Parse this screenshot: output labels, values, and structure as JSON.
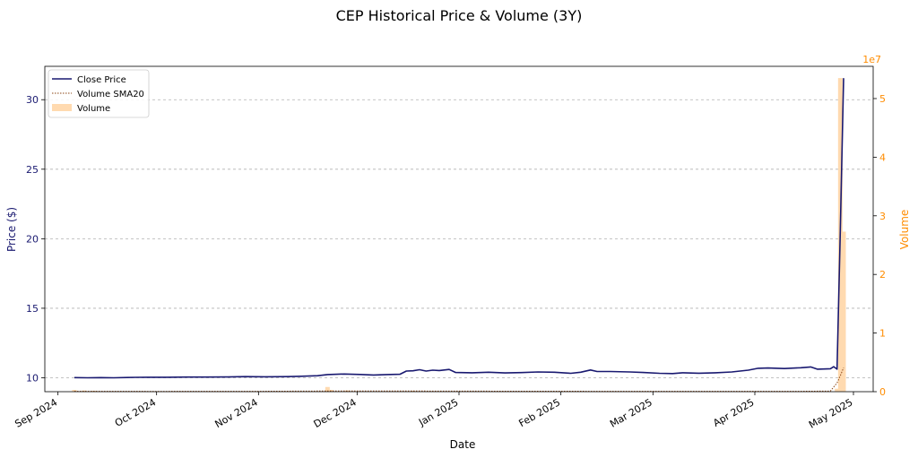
{
  "chart_data": {
    "type": "line",
    "title": "CEP Historical Price & Volume (3Y)",
    "xlabel": "Date",
    "ylabel_left": "Price ($)",
    "ylabel_right": "Volume",
    "right_axis_multiplier": "1e7",
    "x_ticks": [
      "Sep 2024",
      "Oct 2024",
      "Nov 2024",
      "Dec 2024",
      "Jan 2025",
      "Feb 2025",
      "Mar 2025",
      "Apr 2025",
      "May 2025"
    ],
    "x_tick_dates": [
      "2024-09-01",
      "2024-10-01",
      "2024-11-01",
      "2024-12-01",
      "2025-01-01",
      "2025-02-01",
      "2025-03-01",
      "2025-04-01",
      "2025-05-01"
    ],
    "x_range": [
      "2024-08-28",
      "2025-05-07"
    ],
    "ylim_left": [
      9.0,
      32.4
    ],
    "ylim_right": [
      0,
      55500000
    ],
    "y_ticks_left": [
      10,
      15,
      20,
      25,
      30
    ],
    "y_ticks_right": [
      0,
      1,
      2,
      3,
      4,
      5
    ],
    "grid": "horizontal dashed",
    "legend_position": "top-left",
    "colors": {
      "price": "#191970",
      "sma": "#8b4513",
      "volume": "#ffdab0",
      "right_axis": "#ff8c00"
    },
    "series": [
      {
        "name": "Close Price",
        "kind": "line",
        "points": [
          [
            "2024-09-06",
            10.01
          ],
          [
            "2024-09-10",
            10.0
          ],
          [
            "2024-09-14",
            10.01
          ],
          [
            "2024-09-18",
            10.0
          ],
          [
            "2024-09-22",
            10.02
          ],
          [
            "2024-09-25",
            10.03
          ],
          [
            "2024-09-28",
            10.04
          ],
          [
            "2024-10-04",
            10.04
          ],
          [
            "2024-10-10",
            10.05
          ],
          [
            "2024-10-16",
            10.05
          ],
          [
            "2024-10-22",
            10.06
          ],
          [
            "2024-10-28",
            10.08
          ],
          [
            "2024-11-03",
            10.07
          ],
          [
            "2024-11-10",
            10.08
          ],
          [
            "2024-11-14",
            10.11
          ],
          [
            "2024-11-19",
            10.15
          ],
          [
            "2024-11-22",
            10.23
          ],
          [
            "2024-11-27",
            10.27
          ],
          [
            "2024-12-02",
            10.24
          ],
          [
            "2024-12-06",
            10.2
          ],
          [
            "2024-12-10",
            10.23
          ],
          [
            "2024-12-14",
            10.25
          ],
          [
            "2024-12-16",
            10.48
          ],
          [
            "2024-12-18",
            10.5
          ],
          [
            "2024-12-20",
            10.58
          ],
          [
            "2024-12-22",
            10.48
          ],
          [
            "2024-12-24",
            10.55
          ],
          [
            "2024-12-26",
            10.52
          ],
          [
            "2024-12-29",
            10.6
          ],
          [
            "2024-12-31",
            10.38
          ],
          [
            "2025-01-05",
            10.36
          ],
          [
            "2025-01-10",
            10.4
          ],
          [
            "2025-01-15",
            10.35
          ],
          [
            "2025-01-20",
            10.37
          ],
          [
            "2025-01-25",
            10.42
          ],
          [
            "2025-01-30",
            10.4
          ],
          [
            "2025-02-04",
            10.32
          ],
          [
            "2025-02-07",
            10.4
          ],
          [
            "2025-02-10",
            10.56
          ],
          [
            "2025-02-12",
            10.45
          ],
          [
            "2025-02-16",
            10.45
          ],
          [
            "2025-02-22",
            10.42
          ],
          [
            "2025-02-26",
            10.38
          ],
          [
            "2025-03-03",
            10.32
          ],
          [
            "2025-03-07",
            10.3
          ],
          [
            "2025-03-10",
            10.36
          ],
          [
            "2025-03-15",
            10.33
          ],
          [
            "2025-03-20",
            10.36
          ],
          [
            "2025-03-25",
            10.42
          ],
          [
            "2025-03-30",
            10.55
          ],
          [
            "2025-04-02",
            10.68
          ],
          [
            "2025-04-05",
            10.7
          ],
          [
            "2025-04-10",
            10.66
          ],
          [
            "2025-04-15",
            10.72
          ],
          [
            "2025-04-18",
            10.78
          ],
          [
            "2025-04-20",
            10.62
          ],
          [
            "2025-04-24",
            10.65
          ],
          [
            "2025-04-25",
            10.8
          ],
          [
            "2025-04-26",
            10.62
          ],
          [
            "2025-04-27",
            20.5
          ],
          [
            "2025-04-28",
            31.55
          ]
        ]
      },
      {
        "name": "Volume SMA20",
        "kind": "dotted-line",
        "points": [
          [
            "2024-09-06",
            60000
          ],
          [
            "2024-10-01",
            50000
          ],
          [
            "2024-11-01",
            60000
          ],
          [
            "2024-11-25",
            120000
          ],
          [
            "2024-12-20",
            110000
          ],
          [
            "2025-01-20",
            70000
          ],
          [
            "2025-02-20",
            60000
          ],
          [
            "2025-03-20",
            60000
          ],
          [
            "2025-04-15",
            60000
          ],
          [
            "2025-04-24",
            100000
          ],
          [
            "2025-04-25",
            800000
          ],
          [
            "2025-04-26",
            1500000
          ],
          [
            "2025-04-27",
            2700000
          ],
          [
            "2025-04-28",
            4100000
          ]
        ]
      },
      {
        "name": "Volume",
        "kind": "bar",
        "points": [
          [
            "2024-09-06",
            300000
          ],
          [
            "2024-09-09",
            200000
          ],
          [
            "2024-09-12",
            150000
          ],
          [
            "2024-11-22",
            800000
          ],
          [
            "2024-11-23",
            300000
          ],
          [
            "2024-11-28",
            200000
          ],
          [
            "2024-12-18",
            150000
          ],
          [
            "2025-04-26",
            500000
          ],
          [
            "2025-04-27",
            53500000
          ],
          [
            "2025-04-28",
            27300000
          ]
        ]
      }
    ]
  }
}
